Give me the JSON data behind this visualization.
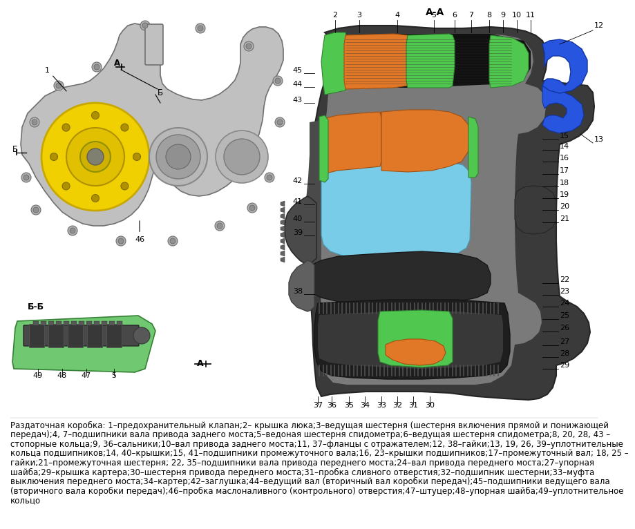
{
  "background_color": "#ffffff",
  "caption_lines": [
    "Раздаточная коробка: 1–предохранительный клапан;2– крышка люка;3–ведущая шестерня (шестерня включения прямой и понижающей",
    "передач);4, 7–подшипники вала привода заднего моста;5–ведоная шестерня спидометра;6–ведущая шестерня спидометра;8, 20, 28, 43 –",
    "стопорные кольца;9, 36–сальники;10–вал привода заднего моста;11, 37–фланцы с отражателем;12, 38–гайки;13, 19, 26, 39–уплотнительные",
    "кольца подшипников;14, 40–крышки;15, 41–подшипники промежуточного вала;16, 23–крышки подшипников;17–промежуточный вал; 18, 25 –",
    "гайки;21–промежуточная шестерня; 22, 35–подшипники вала привода переднего моста;24–вал привода переднего моста;27–упорная",
    "шайба;29–крышка картера;30–шестерня привода переднего моста;31–пробка сливного отверстия;32–подшипник шестерни;33–муфта",
    "выключения переднего моста;34–картер;42–заглушка;44–ведущий вал (вторичный вал коробки передач);45–подшипники ведущего вала",
    "(вторичного вала коробки передач);46–пробка маслоналивного (контрольного) отверстия;47–штуцер;48–упорная шайба;49–уплотнительное",
    "кольцо"
  ],
  "font_size_caption": 8.5
}
